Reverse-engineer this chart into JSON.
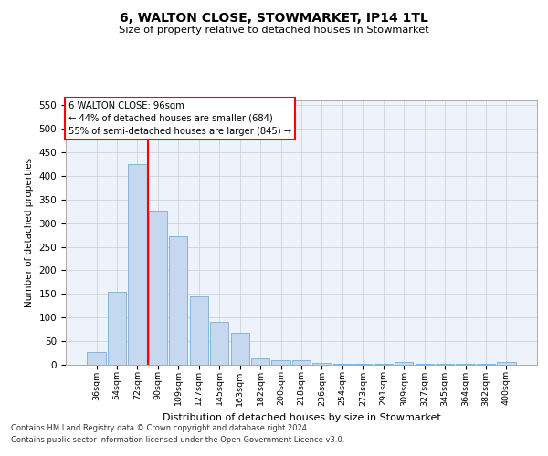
{
  "title1": "6, WALTON CLOSE, STOWMARKET, IP14 1TL",
  "title2": "Size of property relative to detached houses in Stowmarket",
  "xlabel": "Distribution of detached houses by size in Stowmarket",
  "ylabel": "Number of detached properties",
  "categories": [
    "36sqm",
    "54sqm",
    "72sqm",
    "90sqm",
    "109sqm",
    "127sqm",
    "145sqm",
    "163sqm",
    "182sqm",
    "200sqm",
    "218sqm",
    "236sqm",
    "254sqm",
    "273sqm",
    "291sqm",
    "309sqm",
    "327sqm",
    "345sqm",
    "364sqm",
    "382sqm",
    "400sqm"
  ],
  "values": [
    27,
    155,
    425,
    327,
    272,
    145,
    90,
    68,
    13,
    10,
    10,
    4,
    2,
    2,
    2,
    5,
    1,
    1,
    1,
    1,
    5
  ],
  "bar_color": "#c5d8f0",
  "bar_edge_color": "#7aadd4",
  "grid_color": "#cccccc",
  "vline_color": "red",
  "vline_index": 3,
  "ylim": [
    0,
    560
  ],
  "yticks": [
    0,
    50,
    100,
    150,
    200,
    250,
    300,
    350,
    400,
    450,
    500,
    550
  ],
  "annotation_line1": "6 WALTON CLOSE: 96sqm",
  "annotation_line2": "← 44% of detached houses are smaller (684)",
  "annotation_line3": "55% of semi-detached houses are larger (845) →",
  "annotation_box_color": "red",
  "footer1": "Contains HM Land Registry data © Crown copyright and database right 2024.",
  "footer2": "Contains public sector information licensed under the Open Government Licence v3.0.",
  "bg_color": "#ffffff",
  "plot_bg_color": "#eef2fa"
}
